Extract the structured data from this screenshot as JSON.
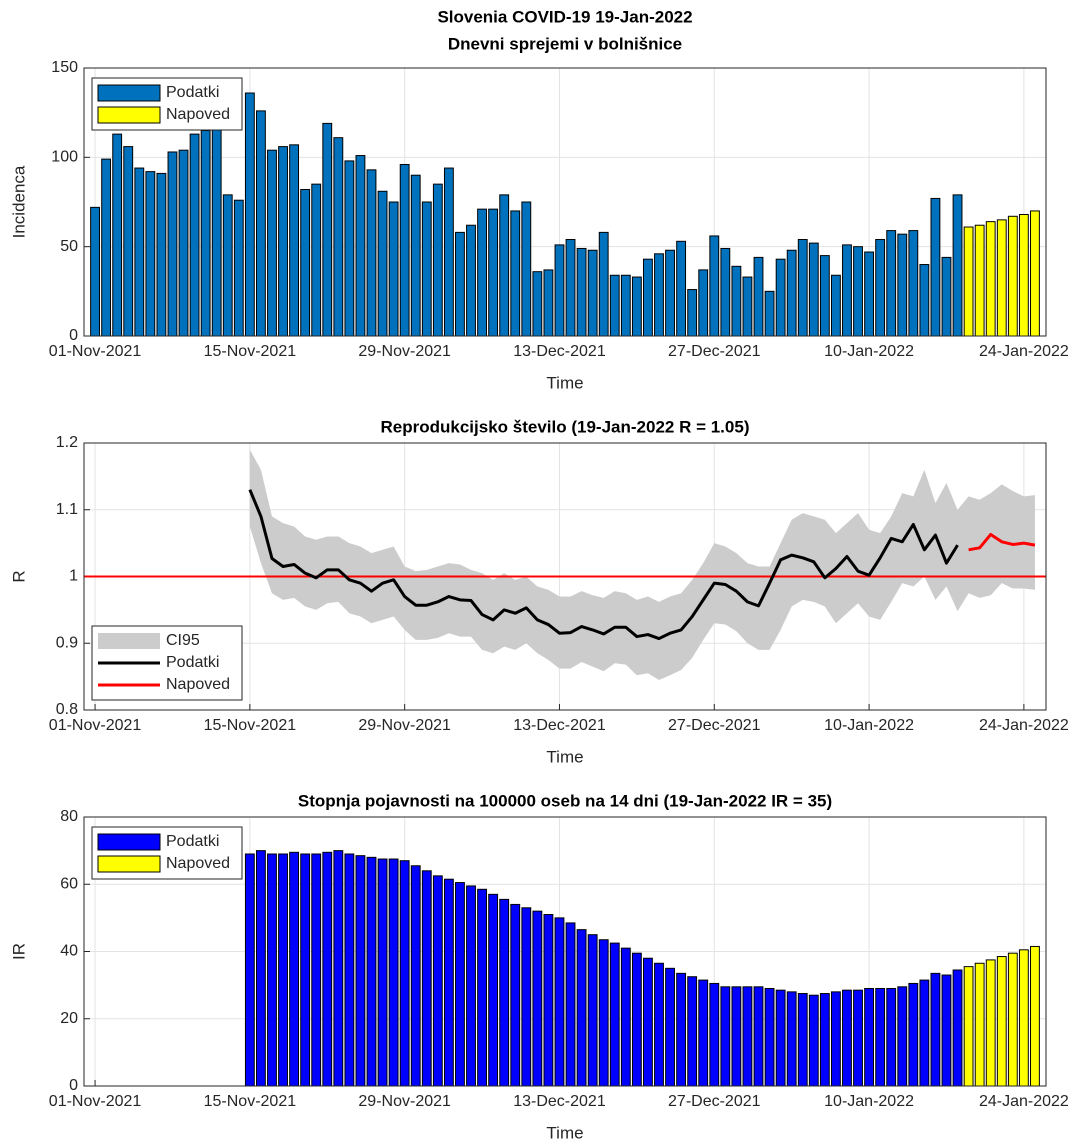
{
  "chart_data": [
    {
      "type": "bar",
      "title": "Slovenia COVID-19 19-Jan-2022",
      "subtitle": "Dnevni sprejemi v bolnišnice",
      "xlabel": "Time",
      "ylabel": "Incidenca",
      "xlim": [
        "2021-10-31",
        "2022-01-26"
      ],
      "xticks": [
        {
          "value": "2021-11-01",
          "label": "01-Nov-2021"
        },
        {
          "value": "2021-11-15",
          "label": "15-Nov-2021"
        },
        {
          "value": "2021-11-29",
          "label": "29-Nov-2021"
        },
        {
          "value": "2021-12-13",
          "label": "13-Dec-2021"
        },
        {
          "value": "2021-12-27",
          "label": "27-Dec-2021"
        },
        {
          "value": "2022-01-10",
          "label": "10-Jan-2022"
        },
        {
          "value": "2022-01-24",
          "label": "24-Jan-2022"
        }
      ],
      "ylim": [
        0,
        150
      ],
      "yticks": [
        0,
        50,
        100,
        150
      ],
      "grid": true,
      "legend": "northwest",
      "series": [
        {
          "name": "Podatki",
          "color": "#0072bd",
          "x": [
            "2021-11-01",
            "2021-11-02",
            "2021-11-03",
            "2021-11-04",
            "2021-11-05",
            "2021-11-06",
            "2021-11-07",
            "2021-11-08",
            "2021-11-09",
            "2021-11-10",
            "2021-11-11",
            "2021-11-12",
            "2021-11-13",
            "2021-11-14",
            "2021-11-15",
            "2021-11-16",
            "2021-11-17",
            "2021-11-18",
            "2021-11-19",
            "2021-11-20",
            "2021-11-21",
            "2021-11-22",
            "2021-11-23",
            "2021-11-24",
            "2021-11-25",
            "2021-11-26",
            "2021-11-27",
            "2021-11-28",
            "2021-11-29",
            "2021-11-30",
            "2021-12-01",
            "2021-12-02",
            "2021-12-03",
            "2021-12-04",
            "2021-12-05",
            "2021-12-06",
            "2021-12-07",
            "2021-12-08",
            "2021-12-09",
            "2021-12-10",
            "2021-12-11",
            "2021-12-12",
            "2021-12-13",
            "2021-12-14",
            "2021-12-15",
            "2021-12-16",
            "2021-12-17",
            "2021-12-18",
            "2021-12-19",
            "2021-12-20",
            "2021-12-21",
            "2021-12-22",
            "2021-12-23",
            "2021-12-24",
            "2021-12-25",
            "2021-12-26",
            "2021-12-27",
            "2021-12-28",
            "2021-12-29",
            "2021-12-30",
            "2021-12-31",
            "2022-01-01",
            "2022-01-02",
            "2022-01-03",
            "2022-01-04",
            "2022-01-05",
            "2022-01-06",
            "2022-01-07",
            "2022-01-08",
            "2022-01-09",
            "2022-01-10",
            "2022-01-11",
            "2022-01-12",
            "2022-01-13",
            "2022-01-14",
            "2022-01-15",
            "2022-01-16",
            "2022-01-17",
            "2022-01-18"
          ],
          "values": [
            72,
            99,
            113,
            106,
            94,
            92,
            91,
            103,
            104,
            113,
            115,
            121,
            79,
            76,
            136,
            126,
            104,
            106,
            107,
            82,
            85,
            119,
            111,
            98,
            101,
            93,
            81,
            75,
            96,
            90,
            75,
            85,
            94,
            58,
            62,
            71,
            71,
            79,
            70,
            75,
            36,
            37,
            51,
            54,
            49,
            48,
            58,
            34,
            34,
            33,
            43,
            46,
            48,
            53,
            26,
            37,
            56,
            49,
            39,
            33,
            44,
            25,
            43,
            48,
            54,
            52,
            45,
            34,
            51,
            50,
            47,
            54,
            59,
            57,
            59,
            40,
            77,
            44,
            79
          ]
        },
        {
          "name": "Napoved",
          "color": "#ffff00",
          "x": [
            "2022-01-19",
            "2022-01-20",
            "2022-01-21",
            "2022-01-22",
            "2022-01-23",
            "2022-01-24",
            "2022-01-25"
          ],
          "values": [
            61,
            62,
            64,
            65,
            67,
            68,
            70
          ]
        }
      ]
    },
    {
      "type": "line",
      "title": "Reprodukcijsko število (19-Jan-2022 R = 1.05)",
      "xlabel": "Time",
      "ylabel": "R",
      "xlim": [
        "2021-10-31",
        "2022-01-26"
      ],
      "xticks": [
        {
          "value": "2021-11-01",
          "label": "01-Nov-2021"
        },
        {
          "value": "2021-11-15",
          "label": "15-Nov-2021"
        },
        {
          "value": "2021-11-29",
          "label": "29-Nov-2021"
        },
        {
          "value": "2021-12-13",
          "label": "13-Dec-2021"
        },
        {
          "value": "2021-12-27",
          "label": "27-Dec-2021"
        },
        {
          "value": "2022-01-10",
          "label": "10-Jan-2022"
        },
        {
          "value": "2022-01-24",
          "label": "24-Jan-2022"
        }
      ],
      "ylim": [
        0.8,
        1.2
      ],
      "yticks": [
        0.8,
        0.9,
        1,
        1.1,
        1.2
      ],
      "grid": true,
      "legend": "southwest",
      "hline": {
        "value": 1,
        "color": "#ff0000"
      },
      "band": {
        "name": "CI95",
        "color": "#cccccc",
        "x": [
          "2021-11-15",
          "2021-11-16",
          "2021-11-17",
          "2021-11-18",
          "2021-11-19",
          "2021-11-20",
          "2021-11-21",
          "2021-11-22",
          "2021-11-23",
          "2021-11-24",
          "2021-11-25",
          "2021-11-26",
          "2021-11-27",
          "2021-11-28",
          "2021-11-29",
          "2021-11-30",
          "2021-12-01",
          "2021-12-02",
          "2021-12-03",
          "2021-12-04",
          "2021-12-05",
          "2021-12-06",
          "2021-12-07",
          "2021-12-08",
          "2021-12-09",
          "2021-12-10",
          "2021-12-11",
          "2021-12-12",
          "2021-12-13",
          "2021-12-14",
          "2021-12-15",
          "2021-12-16",
          "2021-12-17",
          "2021-12-18",
          "2021-12-19",
          "2021-12-20",
          "2021-12-21",
          "2021-12-22",
          "2021-12-23",
          "2021-12-24",
          "2021-12-25",
          "2021-12-26",
          "2021-12-27",
          "2021-12-28",
          "2021-12-29",
          "2021-12-30",
          "2021-12-31",
          "2022-01-01",
          "2022-01-02",
          "2022-01-03",
          "2022-01-04",
          "2022-01-05",
          "2022-01-06",
          "2022-01-07",
          "2022-01-08",
          "2022-01-09",
          "2022-01-10",
          "2022-01-11",
          "2022-01-12",
          "2022-01-13",
          "2022-01-14",
          "2022-01-15",
          "2022-01-16",
          "2022-01-17",
          "2022-01-18",
          "2022-01-19",
          "2022-01-20",
          "2022-01-21",
          "2022-01-22",
          "2022-01-23",
          "2022-01-24",
          "2022-01-25"
        ],
        "upper": [
          1.19,
          1.16,
          1.09,
          1.08,
          1.075,
          1.06,
          1.055,
          1.06,
          1.06,
          1.05,
          1.045,
          1.035,
          1.04,
          1.045,
          1.015,
          1.008,
          1.01,
          1.015,
          1.02,
          1.018,
          1.01,
          1.005,
          0.995,
          1.005,
          0.995,
          1.0,
          0.985,
          0.98,
          0.97,
          0.97,
          0.978,
          0.972,
          0.968,
          0.978,
          0.975,
          0.965,
          0.97,
          0.962,
          0.97,
          0.975,
          0.995,
          1.02,
          1.05,
          1.045,
          1.035,
          1.02,
          1.015,
          1.015,
          1.05,
          1.085,
          1.095,
          1.09,
          1.085,
          1.065,
          1.08,
          1.095,
          1.07,
          1.065,
          1.09,
          1.125,
          1.12,
          1.16,
          1.11,
          1.14,
          1.1,
          1.12,
          1.115,
          1.125,
          1.138,
          1.128,
          1.12,
          1.122
        ],
        "lower": [
          1.075,
          1.02,
          0.975,
          0.965,
          0.968,
          0.955,
          0.95,
          0.96,
          0.962,
          0.945,
          0.94,
          0.93,
          0.935,
          0.94,
          0.92,
          0.905,
          0.905,
          0.908,
          0.915,
          0.91,
          0.91,
          0.89,
          0.885,
          0.895,
          0.89,
          0.9,
          0.885,
          0.875,
          0.862,
          0.862,
          0.872,
          0.865,
          0.858,
          0.87,
          0.868,
          0.852,
          0.855,
          0.845,
          0.852,
          0.86,
          0.878,
          0.905,
          0.93,
          0.928,
          0.918,
          0.9,
          0.89,
          0.89,
          0.92,
          0.955,
          0.965,
          0.962,
          0.955,
          0.93,
          0.945,
          0.96,
          0.94,
          0.935,
          0.962,
          0.99,
          0.985,
          1.0,
          0.965,
          0.985,
          0.948,
          0.975,
          0.968,
          0.972,
          0.99,
          0.982,
          0.982,
          0.98
        ]
      },
      "series": [
        {
          "name": "Podatki",
          "color": "#000000",
          "x": [
            "2021-11-15",
            "2021-11-16",
            "2021-11-17",
            "2021-11-18",
            "2021-11-19",
            "2021-11-20",
            "2021-11-21",
            "2021-11-22",
            "2021-11-23",
            "2021-11-24",
            "2021-11-25",
            "2021-11-26",
            "2021-11-27",
            "2021-11-28",
            "2021-11-29",
            "2021-11-30",
            "2021-12-01",
            "2021-12-02",
            "2021-12-03",
            "2021-12-04",
            "2021-12-05",
            "2021-12-06",
            "2021-12-07",
            "2021-12-08",
            "2021-12-09",
            "2021-12-10",
            "2021-12-11",
            "2021-12-12",
            "2021-12-13",
            "2021-12-14",
            "2021-12-15",
            "2021-12-16",
            "2021-12-17",
            "2021-12-18",
            "2021-12-19",
            "2021-12-20",
            "2021-12-21",
            "2021-12-22",
            "2021-12-23",
            "2021-12-24",
            "2021-12-25",
            "2021-12-26",
            "2021-12-27",
            "2021-12-28",
            "2021-12-29",
            "2021-12-30",
            "2021-12-31",
            "2022-01-01",
            "2022-01-02",
            "2022-01-03",
            "2022-01-04",
            "2022-01-05",
            "2022-01-06",
            "2022-01-07",
            "2022-01-08",
            "2022-01-09",
            "2022-01-10",
            "2022-01-11",
            "2022-01-12",
            "2022-01-13",
            "2022-01-14",
            "2022-01-15",
            "2022-01-16",
            "2022-01-17",
            "2022-01-18"
          ],
          "values": [
            1.13,
            1.09,
            1.027,
            1.015,
            1.018,
            1.005,
            0.998,
            1.01,
            1.01,
            0.995,
            0.99,
            0.978,
            0.99,
            0.995,
            0.97,
            0.957,
            0.957,
            0.962,
            0.97,
            0.965,
            0.964,
            0.943,
            0.935,
            0.95,
            0.945,
            0.953,
            0.935,
            0.928,
            0.915,
            0.916,
            0.925,
            0.92,
            0.914,
            0.924,
            0.924,
            0.91,
            0.913,
            0.907,
            0.915,
            0.92,
            0.94,
            0.965,
            0.99,
            0.988,
            0.978,
            0.962,
            0.956,
            0.99,
            1.025,
            1.032,
            1.028,
            1.022,
            0.998,
            1.012,
            1.03,
            1.008,
            1.002,
            1.028,
            1.057,
            1.052,
            1.078,
            1.04,
            1.062,
            1.02,
            1.047
          ]
        },
        {
          "name": "Napoved",
          "color": "#ff0000",
          "x": [
            "2022-01-19",
            "2022-01-20",
            "2022-01-21",
            "2022-01-22",
            "2022-01-23",
            "2022-01-24",
            "2022-01-25"
          ],
          "values": [
            1.04,
            1.043,
            1.063,
            1.052,
            1.048,
            1.05,
            1.047
          ]
        }
      ]
    },
    {
      "type": "bar",
      "title": "Stopnja pojavnosti na 100000 oseb na 14 dni (19-Jan-2022 IR = 35)",
      "xlabel": "Time",
      "ylabel": "IR",
      "xlim": [
        "2021-10-31",
        "2022-01-26"
      ],
      "xticks": [
        {
          "value": "2021-11-01",
          "label": "01-Nov-2021"
        },
        {
          "value": "2021-11-15",
          "label": "15-Nov-2021"
        },
        {
          "value": "2021-11-29",
          "label": "29-Nov-2021"
        },
        {
          "value": "2021-12-13",
          "label": "13-Dec-2021"
        },
        {
          "value": "2021-12-27",
          "label": "27-Dec-2021"
        },
        {
          "value": "2022-01-10",
          "label": "10-Jan-2022"
        },
        {
          "value": "2022-01-24",
          "label": "24-Jan-2022"
        }
      ],
      "ylim": [
        0,
        80
      ],
      "yticks": [
        0,
        20,
        40,
        60,
        80
      ],
      "grid": true,
      "legend": "northwest",
      "series": [
        {
          "name": "Podatki",
          "color": "#0000ff",
          "x": [
            "2021-11-15",
            "2021-11-16",
            "2021-11-17",
            "2021-11-18",
            "2021-11-19",
            "2021-11-20",
            "2021-11-21",
            "2021-11-22",
            "2021-11-23",
            "2021-11-24",
            "2021-11-25",
            "2021-11-26",
            "2021-11-27",
            "2021-11-28",
            "2021-11-29",
            "2021-11-30",
            "2021-12-01",
            "2021-12-02",
            "2021-12-03",
            "2021-12-04",
            "2021-12-05",
            "2021-12-06",
            "2021-12-07",
            "2021-12-08",
            "2021-12-09",
            "2021-12-10",
            "2021-12-11",
            "2021-12-12",
            "2021-12-13",
            "2021-12-14",
            "2021-12-15",
            "2021-12-16",
            "2021-12-17",
            "2021-12-18",
            "2021-12-19",
            "2021-12-20",
            "2021-12-21",
            "2021-12-22",
            "2021-12-23",
            "2021-12-24",
            "2021-12-25",
            "2021-12-26",
            "2021-12-27",
            "2021-12-28",
            "2021-12-29",
            "2021-12-30",
            "2021-12-31",
            "2022-01-01",
            "2022-01-02",
            "2022-01-03",
            "2022-01-04",
            "2022-01-05",
            "2022-01-06",
            "2022-01-07",
            "2022-01-08",
            "2022-01-09",
            "2022-01-10",
            "2022-01-11",
            "2022-01-12",
            "2022-01-13",
            "2022-01-14",
            "2022-01-15",
            "2022-01-16",
            "2022-01-17",
            "2022-01-18"
          ],
          "values": [
            69,
            70,
            69,
            69,
            69.5,
            69,
            69,
            69.5,
            70,
            69,
            68.5,
            68,
            67.5,
            67.5,
            67,
            65.5,
            64,
            62.5,
            61.5,
            60.5,
            59.5,
            58.5,
            57,
            55.5,
            54,
            53,
            52,
            51,
            50,
            48.5,
            46.5,
            45,
            43.5,
            42.5,
            41,
            39.5,
            38,
            36.5,
            35,
            33.5,
            32.5,
            31.5,
            30.5,
            29.5,
            29.5,
            29.5,
            29.5,
            29,
            28.5,
            28,
            27.5,
            27,
            27.5,
            28,
            28.5,
            28.5,
            29,
            29,
            29,
            29.5,
            30.5,
            31.5,
            33.5,
            33,
            34.5
          ]
        },
        {
          "name": "Napoved",
          "color": "#ffff00",
          "x": [
            "2022-01-19",
            "2022-01-20",
            "2022-01-21",
            "2022-01-22",
            "2022-01-23",
            "2022-01-24",
            "2022-01-25"
          ],
          "values": [
            35.5,
            36.5,
            37.5,
            38.5,
            39.5,
            40.5,
            41.5
          ]
        }
      ]
    }
  ]
}
